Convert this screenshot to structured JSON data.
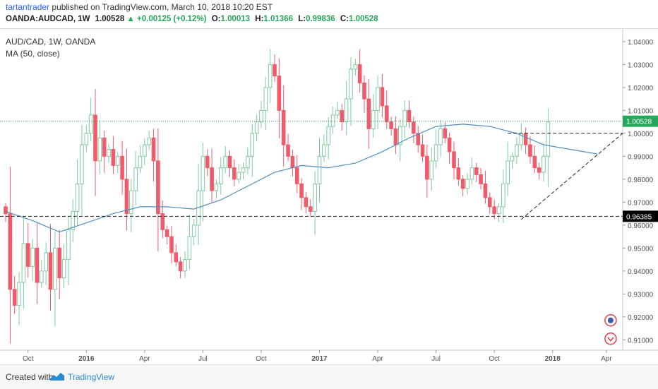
{
  "header": {
    "author": "tartantrader",
    "published_text": "published on TradingView.com, March 10, 2018 10:20 EST",
    "symbol": "OANDA:AUDCAD, 1W",
    "price": "1.00528",
    "change": "+0.00125 (+0.12%)",
    "o_label": "O:",
    "o_value": "1.00013",
    "h_label": "H:",
    "h_value": "1.01366",
    "l_label": "L:",
    "l_value": "0.99836",
    "c_label": "C:",
    "c_value": "1.00528"
  },
  "legend": {
    "title": "AUD/CAD, 1W, OANDA",
    "indicator": "MA (50, close)"
  },
  "footer": {
    "created_with": "Created with",
    "brand": "TradingView"
  },
  "colors": {
    "up": "#7fc9a0",
    "down": "#ef5b6b",
    "ma": "#4f8fbe",
    "price_tag": "#26a65b",
    "level_tag": "#000000"
  },
  "chart_data": {
    "type": "candlestick",
    "title": "AUD/CAD, 1W, OANDA",
    "ylim": [
      0.9055,
      1.0455
    ],
    "y_ticks": [
      "1.04000",
      "1.03000",
      "1.02000",
      "1.01000",
      "1.00000",
      "0.99000",
      "0.98000",
      "0.97000",
      "0.96000",
      "0.95000",
      "0.94000",
      "0.93000",
      "0.92000",
      "0.91000"
    ],
    "x_ticks": [
      {
        "label": "Oct",
        "week": 5
      },
      {
        "label": "2016",
        "week": 18
      },
      {
        "label": "Apr",
        "week": 31
      },
      {
        "label": "Jul",
        "week": 44
      },
      {
        "label": "Oct",
        "week": 57
      },
      {
        "label": "2017",
        "week": 70
      },
      {
        "label": "Apr",
        "week": 83
      },
      {
        "label": "Jul",
        "week": 96
      },
      {
        "label": "Oct",
        "week": 109
      },
      {
        "label": "2018",
        "week": 122
      },
      {
        "label": "Apr",
        "week": 134
      }
    ],
    "current_price": 1.00528,
    "current_price_label": "1.00528",
    "support_level": 0.96385,
    "support_label": "0.96385",
    "resistance_level": 1.0,
    "trendline": {
      "from": {
        "week": 115,
        "value": 0.9625
      },
      "to": {
        "week": 135,
        "value": 1.0
      }
    },
    "ma_period": 50,
    "ma": [
      [
        0,
        0.966
      ],
      [
        6,
        0.962
      ],
      [
        12,
        0.957
      ],
      [
        18,
        0.961
      ],
      [
        24,
        0.965
      ],
      [
        30,
        0.968
      ],
      [
        36,
        0.968
      ],
      [
        42,
        0.967
      ],
      [
        48,
        0.971
      ],
      [
        54,
        0.977
      ],
      [
        60,
        0.983
      ],
      [
        66,
        0.986
      ],
      [
        72,
        0.985
      ],
      [
        78,
        0.987
      ],
      [
        84,
        0.992
      ],
      [
        90,
        0.998
      ],
      [
        96,
        1.003
      ],
      [
        102,
        1.004
      ],
      [
        108,
        1.003
      ],
      [
        114,
        1.0
      ],
      [
        120,
        0.995
      ],
      [
        126,
        0.993
      ],
      [
        132,
        0.991
      ]
    ],
    "close": [
      0.965,
      0.932,
      0.925,
      0.935,
      0.952,
      0.942,
      0.95,
      0.935,
      0.94,
      0.948,
      0.932,
      0.95,
      0.937,
      0.945,
      0.958,
      0.966,
      0.978,
      0.995,
      1.0,
      1.008,
      0.988,
      0.998,
      0.99,
      0.993,
      0.986,
      0.99,
      0.98,
      0.965,
      0.975,
      0.985,
      0.99,
      0.995,
      0.998,
      0.988,
      0.965,
      0.958,
      0.955,
      0.948,
      0.944,
      0.94,
      0.945,
      0.955,
      0.96,
      0.975,
      0.99,
      0.985,
      0.975,
      0.978,
      0.985,
      0.99,
      0.985,
      0.98,
      0.983,
      0.985,
      0.99,
      1.0,
      1.005,
      1.01,
      1.02,
      1.03,
      1.025,
      1.01,
      0.995,
      0.99,
      0.985,
      0.978,
      0.972,
      0.968,
      0.966,
      0.978,
      0.99,
      0.995,
      1.003,
      1.008,
      1.01,
      1.005,
      1.015,
      1.028,
      1.03,
      1.022,
      1.015,
      1.002,
      1.01,
      1.02,
      1.012,
      1.005,
      1.002,
      0.995,
      1.003,
      1.01,
      1.005,
      1.0,
      0.995,
      0.99,
      0.98,
      0.988,
      0.995,
      1.002,
      0.998,
      0.992,
      0.985,
      0.98,
      0.976,
      0.98,
      0.985,
      0.982,
      0.978,
      0.972,
      0.968,
      0.965,
      0.968,
      0.978,
      0.988,
      0.99,
      0.995,
      1.0,
      0.995,
      0.99,
      0.985,
      0.983,
      0.99,
      1.005
    ]
  }
}
